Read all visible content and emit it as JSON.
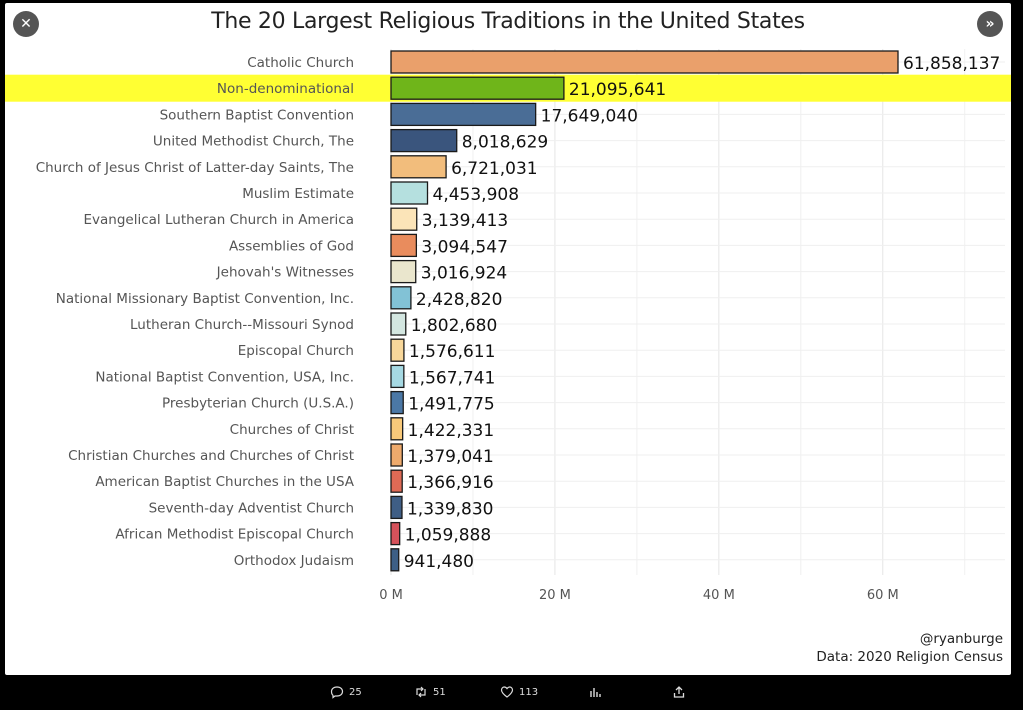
{
  "nav": {
    "prev_icon": "close-icon",
    "next_icon": "chevron-double-right-icon",
    "prev_glyph": "✕",
    "next_glyph": "»"
  },
  "chart_data": {
    "type": "bar",
    "orientation": "horizontal",
    "title": "The 20 Largest Religious Traditions in the United States",
    "xlabel": "",
    "ylabel": "",
    "xlim": [
      0,
      70000000
    ],
    "grid": true,
    "legend": "none",
    "highlight_category": "Non-denominational",
    "highlight_color": "#ffff33",
    "x_ticks": [
      {
        "value": 0,
        "label": "0 M"
      },
      {
        "value": 20000000,
        "label": "20 M"
      },
      {
        "value": 40000000,
        "label": "40 M"
      },
      {
        "value": 60000000,
        "label": "60 M"
      }
    ],
    "categories": [
      "Catholic Church",
      "Non-denominational",
      "Southern Baptist Convention",
      "United Methodist Church, The",
      "Church of Jesus Christ of Latter-day Saints, The",
      "Muslim Estimate",
      "Evangelical Lutheran Church in America",
      "Assemblies of God",
      "Jehovah's Witnesses",
      "National Missionary Baptist Convention, Inc.",
      "Lutheran Church--Missouri Synod",
      "Episcopal Church",
      "National Baptist Convention, USA, Inc.",
      "Presbyterian Church (U.S.A.)",
      "Churches of Christ",
      "Christian Churches and Churches of Christ",
      "American Baptist Churches in the USA",
      "Seventh-day Adventist Church",
      "African Methodist Episcopal Church",
      "Orthodox Judaism"
    ],
    "values": [
      61858137,
      21095641,
      17649040,
      8018629,
      6721031,
      4453908,
      3139413,
      3094547,
      3016924,
      2428820,
      1802680,
      1576611,
      1567741,
      1491775,
      1422331,
      1379041,
      1366916,
      1339830,
      1059888,
      941480
    ],
    "value_labels": [
      "61,858,137",
      "21,095,641",
      "17,649,040",
      "8,018,629",
      "6,721,031",
      "4,453,908",
      "3,139,413",
      "3,094,547",
      "3,016,924",
      "2,428,820",
      "1,802,680",
      "1,576,611",
      "1,567,741",
      "1,491,775",
      "1,422,331",
      "1,379,041",
      "1,366,916",
      "1,339,830",
      "1,059,888",
      "941,480"
    ],
    "colors": [
      "#eaa06b",
      "#6fb51a",
      "#4a6d96",
      "#3a557d",
      "#f2bd7c",
      "#b5e0df",
      "#fbe4b8",
      "#e98c5d",
      "#eae6cd",
      "#82c2d6",
      "#d3e6e0",
      "#f8d79a",
      "#a6d9e3",
      "#4b78a6",
      "#f8c97a",
      "#eeaa6c",
      "#df6a55",
      "#3f5e85",
      "#d6525b",
      "#3d5f86"
    ]
  },
  "credit": {
    "handle": "@ryanburge",
    "source": "Data: 2020 Religion Census"
  },
  "actions": {
    "reply_count": "25",
    "retweet_count": "51",
    "like_count": "113"
  }
}
